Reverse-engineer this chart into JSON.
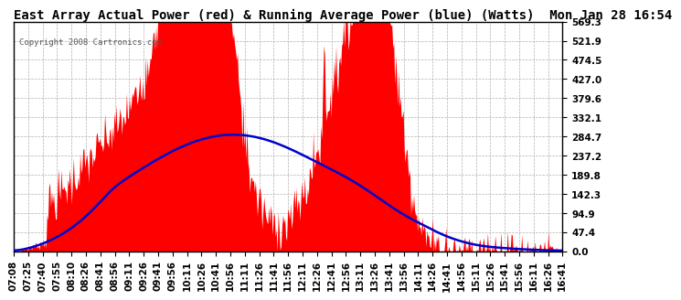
{
  "title": "East Array Actual Power (red) & Running Average Power (blue) (Watts)  Mon Jan 28 16:54",
  "copyright": "Copyright 2008 Cartronics.com",
  "background_color": "#ffffff",
  "plot_bg_color": "#ffffff",
  "grid_color": "#b0b0b0",
  "yticks": [
    0.0,
    47.4,
    94.9,
    142.3,
    189.8,
    237.2,
    284.7,
    332.1,
    379.6,
    427.0,
    474.5,
    521.9,
    569.3
  ],
  "ymax": 569.3,
  "xtick_labels": [
    "07:08",
    "07:25",
    "07:40",
    "07:55",
    "08:10",
    "08:26",
    "08:41",
    "08:56",
    "09:11",
    "09:26",
    "09:41",
    "09:56",
    "10:11",
    "10:26",
    "10:41",
    "10:56",
    "11:11",
    "11:26",
    "11:41",
    "11:56",
    "12:11",
    "12:26",
    "12:41",
    "12:56",
    "13:11",
    "13:26",
    "13:41",
    "13:56",
    "14:11",
    "14:26",
    "14:41",
    "14:56",
    "15:11",
    "15:26",
    "15:41",
    "15:56",
    "16:11",
    "16:26",
    "16:41"
  ],
  "actual_color": "#ff0000",
  "avg_color": "#0000cc",
  "title_fontsize": 10,
  "tick_fontsize": 7.5
}
